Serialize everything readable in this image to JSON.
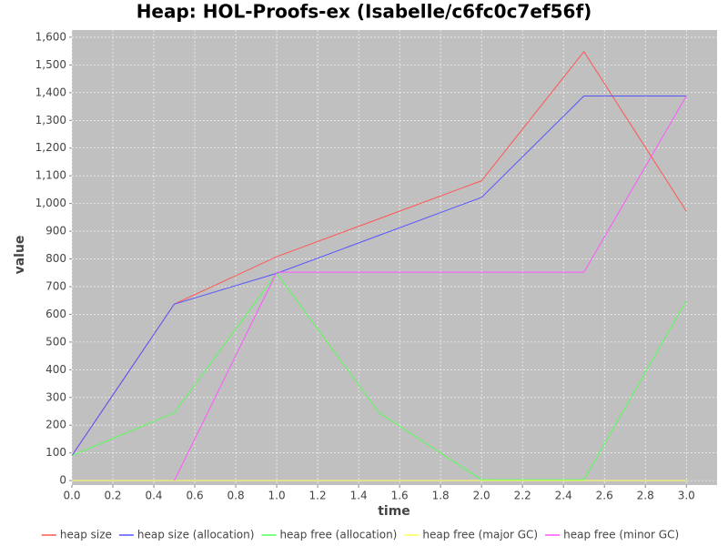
{
  "chart_data": {
    "type": "line",
    "title": "Heap: HOL-Proofs-ex (Isabelle/c6fc0c7ef56f)",
    "x_label": "time",
    "y_label": "value",
    "x": [
      0,
      0.5,
      1,
      1.5,
      2,
      2.5,
      3
    ],
    "series": [
      {
        "name": "heap size",
        "color": "#ff5555",
        "values": [
          90,
          637,
          808,
          945,
          1082,
          1548,
          972
        ]
      },
      {
        "name": "heap size (allocation)",
        "color": "#5555ff",
        "values": [
          90,
          637,
          748,
          885,
          1022,
          1388,
          1388
        ]
      },
      {
        "name": "heap free (allocation)",
        "color": "#55ff55",
        "values": [
          90,
          245,
          748,
          245,
          3,
          3,
          650
        ]
      },
      {
        "name": "heap free (major GC)",
        "color": "#ffff55",
        "values": [
          0,
          0,
          0,
          0,
          0,
          0,
          0
        ]
      },
      {
        "name": "heap free (minor GC)",
        "color": "#ff55ff",
        "values": [
          null,
          0,
          752,
          752,
          752,
          752,
          1388
        ]
      }
    ],
    "xlim": [
      0,
      3.15
    ],
    "ylim": [
      -16,
      1626
    ],
    "xticks": [
      {
        "value": 0,
        "label": "0.0"
      },
      0.2,
      0.4,
      0.6,
      0.8,
      {
        "value": 1,
        "label": "1.0"
      },
      1.2,
      1.4,
      1.6,
      1.8,
      {
        "value": 2,
        "label": "2.0"
      },
      2.2,
      2.4,
      2.6,
      2.8,
      {
        "value": 3,
        "label": "3.0"
      }
    ],
    "yticks": [
      0,
      100,
      200,
      300,
      400,
      500,
      600,
      700,
      800,
      900,
      {
        "value": 1000,
        "label": "1,000"
      },
      {
        "value": 1100,
        "label": "1,100"
      },
      {
        "value": 1200,
        "label": "1,200"
      },
      {
        "value": 1300,
        "label": "1,300"
      },
      {
        "value": 1400,
        "label": "1,400"
      },
      {
        "value": 1500,
        "label": "1,500"
      },
      {
        "value": 1600,
        "label": "1,600"
      }
    ],
    "grid": true
  }
}
